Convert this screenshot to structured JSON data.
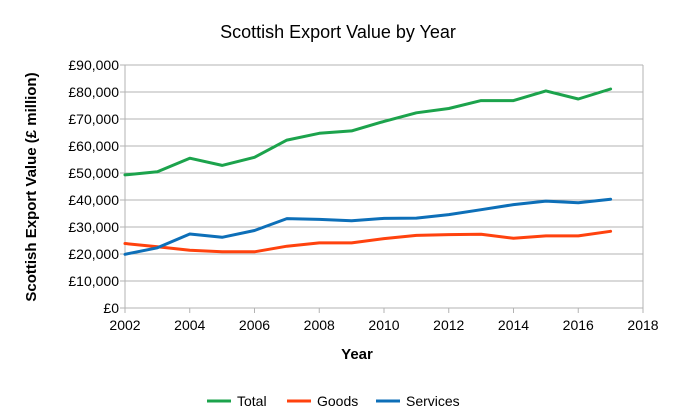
{
  "chart_data": {
    "type": "line",
    "title": "Scottish Export Value by Year",
    "xlabel": "Year",
    "ylabel": "Scottish Export Value (£ million)",
    "xlim": [
      2002,
      2018
    ],
    "ylim": [
      0,
      90000
    ],
    "x_ticks": [
      2002,
      2004,
      2006,
      2008,
      2010,
      2012,
      2014,
      2016,
      2018
    ],
    "y_ticks": [
      0,
      10000,
      20000,
      30000,
      40000,
      50000,
      60000,
      70000,
      80000,
      90000
    ],
    "y_tick_labels": [
      "£0",
      "£10,000",
      "£20,000",
      "£30,000",
      "£40,000",
      "£50,000",
      "£60,000",
      "£70,000",
      "£80,000",
      "£90,000"
    ],
    "grid": "horizontal",
    "legend_position": "bottom",
    "x": [
      2002,
      2003,
      2004,
      2005,
      2006,
      2007,
      2008,
      2009,
      2010,
      2011,
      2012,
      2013,
      2014,
      2015,
      2016,
      2017
    ],
    "series": [
      {
        "name": "Total",
        "color": "#1ca34c",
        "values": [
          49300,
          50500,
          55500,
          52800,
          55800,
          62200,
          64700,
          65600,
          69100,
          72300,
          73900,
          76800,
          76800,
          80400,
          77400,
          81100
        ]
      },
      {
        "name": "Goods",
        "color": "#ff420e",
        "values": [
          23900,
          22700,
          21400,
          20800,
          20800,
          22900,
          24100,
          24100,
          25700,
          26900,
          27200,
          27300,
          25800,
          26700,
          26700,
          28400
        ]
      },
      {
        "name": "Services",
        "color": "#0d6fb8",
        "values": [
          19900,
          22300,
          27400,
          26200,
          28700,
          33100,
          32800,
          32300,
          33200,
          33300,
          34600,
          36400,
          38300,
          39600,
          39000,
          40300
        ]
      }
    ]
  }
}
